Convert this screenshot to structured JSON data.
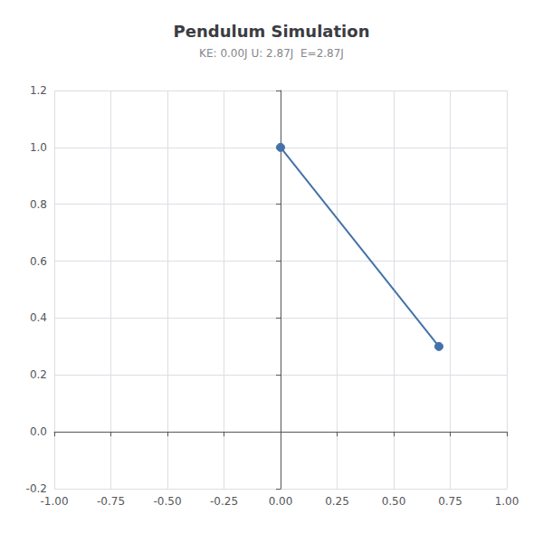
{
  "chart_data": {
    "type": "line",
    "title": "Pendulum Simulation",
    "subtitle": "KE: 0.00J U: 2.87J  E=2.87J",
    "x": [
      0.0,
      0.7
    ],
    "values": [
      1.0,
      0.3
    ],
    "color": "#4472a8",
    "marker": "circle",
    "line_style": "solid",
    "xlim": [
      -1.0,
      1.0
    ],
    "ylim": [
      -0.2,
      1.2
    ],
    "xticks": [
      {
        "value": -1.0,
        "label": "-1.00"
      },
      {
        "value": -0.75,
        "label": "-0.75"
      },
      {
        "value": -0.5,
        "label": "-0.50"
      },
      {
        "value": -0.25,
        "label": "-0.25"
      },
      {
        "value": 0.0,
        "label": "0.00"
      },
      {
        "value": 0.25,
        "label": "0.25"
      },
      {
        "value": 0.5,
        "label": "0.50"
      },
      {
        "value": 0.75,
        "label": "0.75"
      },
      {
        "value": 1.0,
        "label": "1.00"
      }
    ],
    "yticks": [
      -0.2,
      {
        "value": 0.0,
        "label": "0.0"
      },
      0.2,
      0.4,
      0.6,
      0.8,
      {
        "value": 1.0,
        "label": "1.0"
      },
      1.2
    ],
    "grid": true
  }
}
